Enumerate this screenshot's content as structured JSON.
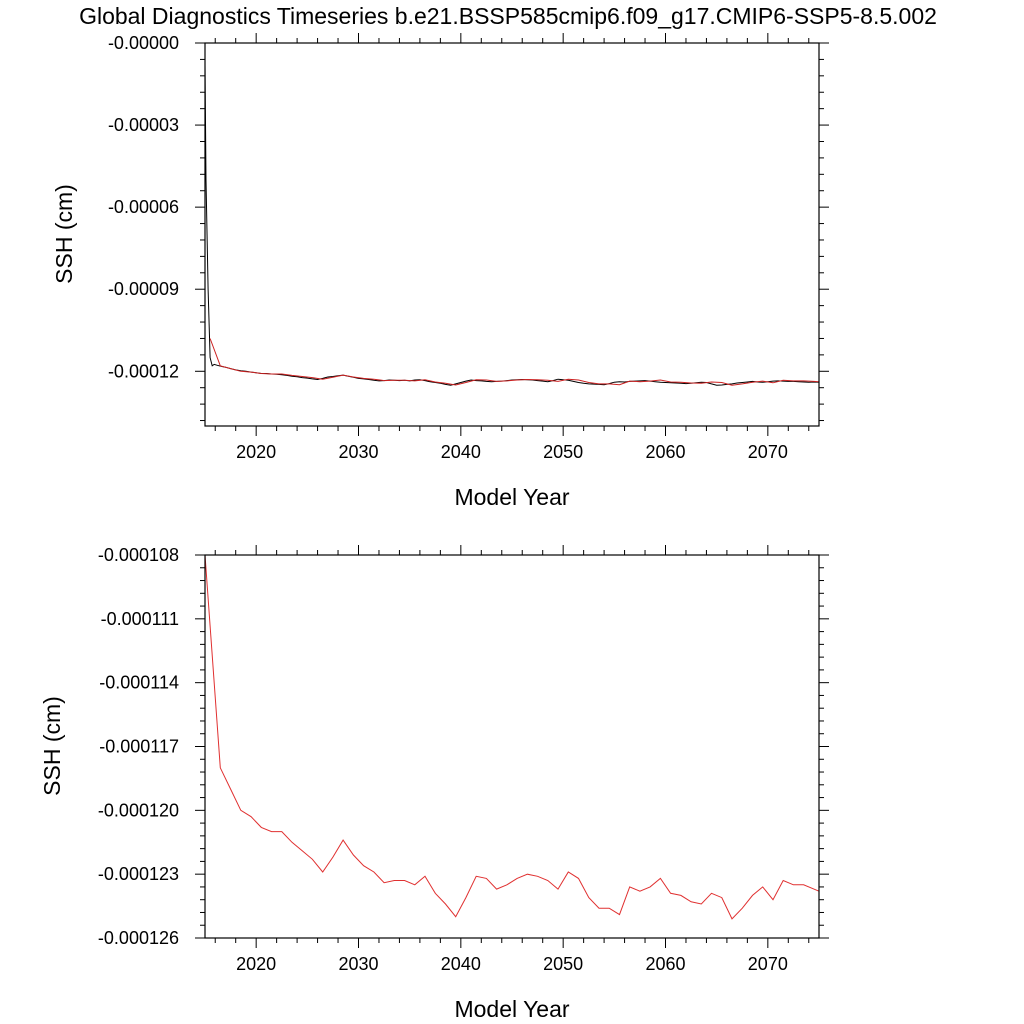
{
  "title": "Global Diagnostics Timeseries b.e21.BSSP585cmip6.f09_g17.CMIP6-SSP5-8.5.002",
  "chart_data": [
    {
      "type": "line",
      "xlabel": "Model Year",
      "ylabel": "SSH (cm)",
      "xlim": [
        2015,
        2075
      ],
      "ylim": [
        -0.00014,
        0.0
      ],
      "xticks": [
        2020,
        2030,
        2040,
        2050,
        2060,
        2070
      ],
      "x_tick_labels": [
        "2020",
        "2030",
        "2040",
        "2050",
        "2060",
        "2070"
      ],
      "yticks": [
        0.0,
        -3e-05,
        -6e-05,
        -9e-05,
        -0.00012
      ],
      "y_tick_labels": [
        "-0.00000",
        "-0.00003",
        "-0.00006",
        "-0.00009",
        "-0.00012"
      ],
      "series": [
        {
          "color": "#000000",
          "x": [
            2015.0,
            2015.1,
            2015.3,
            2015.5,
            2015.7,
            2015.9,
            2016.2,
            2016.6,
            2017.0,
            2017.5,
            2018.0,
            2018.5,
            2019.0,
            2019.5,
            2020.0,
            2020.5,
            2021.0,
            2021.5,
            2022.0,
            2022.5,
            2023.0,
            2023.5,
            2024.0,
            2024.5,
            2025.0,
            2025.5,
            2026.0,
            2026.5,
            2027.0,
            2027.5,
            2028.0,
            2028.5,
            2029.0,
            2029.5,
            2030.0,
            2030.5,
            2031.0,
            2031.5,
            2032.0,
            2032.5,
            2033.0,
            2033.5,
            2034.0,
            2034.5,
            2035.0,
            2035.5,
            2036.0,
            2036.5,
            2037.0,
            2037.5,
            2038.0,
            2038.5,
            2039.0,
            2039.5,
            2040.0,
            2040.5,
            2041.0,
            2041.5,
            2042.0,
            2042.5,
            2043.0,
            2043.5,
            2044.0,
            2044.5,
            2045.0,
            2045.5,
            2046.0,
            2046.5,
            2047.0,
            2047.5,
            2048.0,
            2048.5,
            2049.0,
            2049.5,
            2050.0,
            2050.5,
            2051.0,
            2051.5,
            2052.0,
            2052.5,
            2053.0,
            2053.5,
            2054.0,
            2054.5,
            2055.0,
            2055.5,
            2056.0,
            2056.5,
            2057.0,
            2057.5,
            2058.0,
            2058.5,
            2059.0,
            2059.5,
            2060.0,
            2060.5,
            2061.0,
            2061.5,
            2062.0,
            2062.5,
            2063.0,
            2063.5,
            2064.0,
            2064.5,
            2065.0,
            2065.5,
            2066.0,
            2066.5,
            2067.0,
            2067.5,
            2068.0,
            2068.5,
            2069.0,
            2069.5,
            2070.0,
            2070.5,
            2071.0,
            2071.5,
            2072.0,
            2072.5,
            2073.0,
            2073.5,
            2074.0,
            2074.5,
            2075.0
          ],
          "y": [
            -8e-06,
            -5e-05,
            -9e-05,
            -0.000115,
            -0.000118,
            -0.0001175,
            -0.0001178,
            -0.0001182,
            -0.0001185,
            -0.000119,
            -0.0001195,
            -0.0001198,
            -0.00012,
            -0.0001203,
            -0.0001205,
            -0.0001208,
            -0.0001208,
            -0.000121,
            -0.0001211,
            -0.0001213,
            -0.0001215,
            -0.0001218,
            -0.000122,
            -0.0001223,
            -0.0001225,
            -0.0001228,
            -0.000123,
            -0.0001226,
            -0.0001221,
            -0.0001219,
            -0.0001216,
            -0.0001214,
            -0.0001218,
            -0.0001222,
            -0.0001226,
            -0.0001228,
            -0.000123,
            -0.0001233,
            -0.0001235,
            -0.0001234,
            -0.0001232,
            -0.0001233,
            -0.0001234,
            -0.0001233,
            -0.0001235,
            -0.0001232,
            -0.0001231,
            -0.0001234,
            -0.0001238,
            -0.0001241,
            -0.0001244,
            -0.0001248,
            -0.0001251,
            -0.0001246,
            -0.0001241,
            -0.0001236,
            -0.0001232,
            -0.0001234,
            -0.0001235,
            -0.0001237,
            -0.0001238,
            -0.0001237,
            -0.0001236,
            -0.0001234,
            -0.0001232,
            -0.0001231,
            -0.000123,
            -0.0001231,
            -0.0001232,
            -0.0001234,
            -0.0001236,
            -0.0001238,
            -0.0001234,
            -0.0001229,
            -0.0001231,
            -0.0001233,
            -0.0001237,
            -0.0001241,
            -0.0001244,
            -0.0001246,
            -0.0001247,
            -0.0001248,
            -0.0001249,
            -0.0001245,
            -0.000124,
            -0.0001238,
            -0.0001239,
            -0.0001237,
            -0.0001236,
            -0.0001235,
            -0.0001234,
            -0.0001236,
            -0.0001238,
            -0.000124,
            -0.0001241,
            -0.0001242,
            -0.0001243,
            -0.0001244,
            -0.0001245,
            -0.0001244,
            -0.0001242,
            -0.000124,
            -0.0001241,
            -0.0001246,
            -0.0001251,
            -0.000125,
            -0.0001248,
            -0.0001246,
            -0.0001243,
            -0.0001241,
            -0.0001239,
            -0.0001237,
            -0.0001239,
            -0.000124,
            -0.0001238,
            -0.0001236,
            -0.0001235,
            -0.0001236,
            -0.0001237,
            -0.0001237,
            -0.0001238,
            -0.0001239,
            -0.000124,
            -0.0001239,
            -0.000124
          ]
        },
        {
          "color": "#cc2222",
          "x": [
            2015.5,
            2016.5,
            2017.5,
            2018.5,
            2019.5,
            2020.5,
            2021.5,
            2022.5,
            2023.5,
            2024.5,
            2025.5,
            2026.5,
            2027.5,
            2028.5,
            2029.5,
            2030.5,
            2031.5,
            2032.5,
            2033.5,
            2034.5,
            2035.5,
            2036.5,
            2037.5,
            2038.5,
            2039.5,
            2040.5,
            2041.5,
            2042.5,
            2043.5,
            2044.5,
            2045.5,
            2046.5,
            2047.5,
            2048.5,
            2049.5,
            2050.5,
            2051.5,
            2052.5,
            2053.5,
            2054.5,
            2055.5,
            2056.5,
            2057.5,
            2058.5,
            2059.5,
            2060.5,
            2061.5,
            2062.5,
            2063.5,
            2064.5,
            2065.5,
            2066.5,
            2067.5,
            2068.5,
            2069.5,
            2070.5,
            2071.5,
            2072.5,
            2073.5,
            2074.5,
            2075.0
          ],
          "y": [
            -0.000108,
            -0.000118,
            -0.000119,
            -0.00012,
            -0.0001203,
            -0.0001208,
            -0.000121,
            -0.000121,
            -0.0001215,
            -0.0001219,
            -0.0001223,
            -0.0001229,
            -0.0001222,
            -0.0001214,
            -0.0001221,
            -0.0001226,
            -0.0001229,
            -0.0001234,
            -0.0001233,
            -0.0001233,
            -0.0001235,
            -0.0001231,
            -0.0001239,
            -0.0001244,
            -0.000125,
            -0.0001241,
            -0.0001231,
            -0.0001232,
            -0.0001237,
            -0.0001235,
            -0.0001232,
            -0.000123,
            -0.0001231,
            -0.0001233,
            -0.0001237,
            -0.0001229,
            -0.0001232,
            -0.0001241,
            -0.0001246,
            -0.0001246,
            -0.0001249,
            -0.0001236,
            -0.0001238,
            -0.0001236,
            -0.0001232,
            -0.0001239,
            -0.000124,
            -0.0001243,
            -0.0001244,
            -0.0001239,
            -0.0001241,
            -0.0001251,
            -0.0001246,
            -0.000124,
            -0.0001236,
            -0.0001242,
            -0.0001233,
            -0.0001235,
            -0.0001235,
            -0.0001237,
            -0.0001238
          ]
        }
      ]
    },
    {
      "type": "line",
      "xlabel": "Model Year",
      "ylabel": "SSH (cm)",
      "xlim": [
        2015,
        2075
      ],
      "ylim": [
        -0.000126,
        -0.000108
      ],
      "xticks": [
        2020,
        2030,
        2040,
        2050,
        2060,
        2070
      ],
      "x_tick_labels": [
        "2020",
        "2030",
        "2040",
        "2050",
        "2060",
        "2070"
      ],
      "yticks": [
        -0.000108,
        -0.000111,
        -0.000114,
        -0.000117,
        -0.00012,
        -0.000123,
        -0.000126
      ],
      "y_tick_labels": [
        "-0.000108",
        "-0.000111",
        "-0.000114",
        "-0.000117",
        "-0.000120",
        "-0.000123",
        "-0.000126"
      ],
      "series": [
        {
          "color": "#e03030",
          "x": [
            2015.0,
            2016.5,
            2017.5,
            2018.5,
            2019.5,
            2020.5,
            2021.5,
            2022.5,
            2023.5,
            2024.5,
            2025.5,
            2026.5,
            2027.5,
            2028.5,
            2029.5,
            2030.5,
            2031.5,
            2032.5,
            2033.5,
            2034.5,
            2035.5,
            2036.5,
            2037.5,
            2038.5,
            2039.5,
            2040.5,
            2041.5,
            2042.5,
            2043.5,
            2044.5,
            2045.5,
            2046.5,
            2047.5,
            2048.5,
            2049.5,
            2050.5,
            2051.5,
            2052.5,
            2053.5,
            2054.5,
            2055.5,
            2056.5,
            2057.5,
            2058.5,
            2059.5,
            2060.5,
            2061.5,
            2062.5,
            2063.5,
            2064.5,
            2065.5,
            2066.5,
            2067.5,
            2068.5,
            2069.5,
            2070.5,
            2071.5,
            2072.5,
            2073.5,
            2074.5,
            2075.0
          ],
          "y": [
            -0.000108,
            -0.000118,
            -0.000119,
            -0.00012,
            -0.0001203,
            -0.0001208,
            -0.000121,
            -0.000121,
            -0.0001215,
            -0.0001219,
            -0.0001223,
            -0.0001229,
            -0.0001222,
            -0.0001214,
            -0.0001221,
            -0.0001226,
            -0.0001229,
            -0.0001234,
            -0.0001233,
            -0.0001233,
            -0.0001235,
            -0.0001231,
            -0.0001239,
            -0.0001244,
            -0.000125,
            -0.0001241,
            -0.0001231,
            -0.0001232,
            -0.0001237,
            -0.0001235,
            -0.0001232,
            -0.000123,
            -0.0001231,
            -0.0001233,
            -0.0001237,
            -0.0001229,
            -0.0001232,
            -0.0001241,
            -0.0001246,
            -0.0001246,
            -0.0001249,
            -0.0001236,
            -0.0001238,
            -0.0001236,
            -0.0001232,
            -0.0001239,
            -0.000124,
            -0.0001243,
            -0.0001244,
            -0.0001239,
            -0.0001241,
            -0.0001251,
            -0.0001246,
            -0.000124,
            -0.0001236,
            -0.0001242,
            -0.0001233,
            -0.0001235,
            -0.0001235,
            -0.0001237,
            -0.0001238
          ]
        }
      ]
    }
  ]
}
